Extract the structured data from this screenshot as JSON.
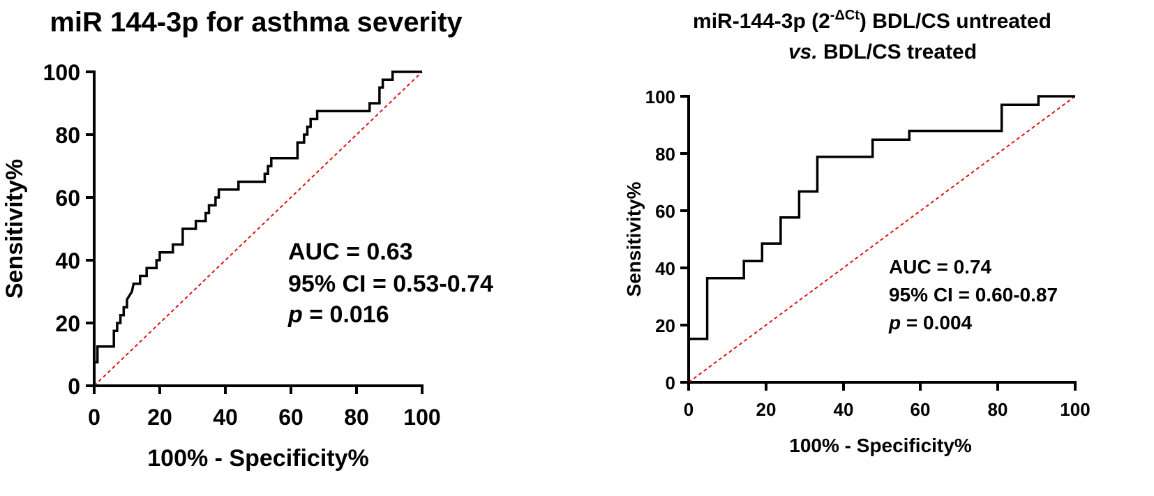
{
  "chart_data": [
    {
      "type": "line",
      "title": "miR 144-3p for asthma severity",
      "xlabel": "100% - Specificity%",
      "ylabel": "Sensitivity%",
      "xlim": [
        0,
        100
      ],
      "ylim": [
        0,
        100
      ],
      "xticks": [
        "0",
        "20",
        "40",
        "60",
        "80",
        "100"
      ],
      "yticks": [
        "0",
        "20",
        "40",
        "60",
        "80",
        "100"
      ],
      "annotations": {
        "auc": "AUC = 0.63",
        "ci": "95% CI = 0.53-0.74",
        "p_label": "p",
        "p_value": " = 0.016"
      },
      "reference_color": "#e01010",
      "series": [
        {
          "name": "ROC",
          "x": [
            0,
            0,
            1,
            1,
            6,
            6,
            7,
            7,
            8,
            8,
            9,
            9,
            10,
            10,
            11.5,
            12,
            14,
            14,
            16,
            16,
            19,
            19,
            20,
            20,
            24,
            24,
            27,
            27,
            31,
            31,
            34,
            34,
            35,
            35,
            37,
            37,
            38,
            38,
            40,
            40,
            42,
            42,
            44,
            44,
            52,
            52,
            53,
            53,
            54,
            54,
            62,
            62,
            64,
            64,
            65,
            65,
            66,
            66,
            68,
            68,
            70,
            70,
            71,
            71,
            72,
            72,
            84,
            84,
            87,
            87,
            88,
            88,
            91,
            91,
            96,
            96,
            100
          ],
          "y": [
            0,
            7.5,
            7.5,
            12.5,
            12.5,
            17.5,
            17.5,
            20,
            20,
            22.5,
            22.5,
            25,
            25,
            27.5,
            30,
            32.5,
            32.5,
            35,
            35,
            37.5,
            37.5,
            40,
            40,
            42.5,
            42.5,
            45,
            45,
            50,
            50,
            52.5,
            52.5,
            55,
            55,
            57.5,
            57.5,
            60,
            60,
            62.5,
            62.5,
            62.5,
            62.5,
            62.5,
            62.5,
            65,
            65,
            67.5,
            67.5,
            70,
            70,
            72.5,
            72.5,
            77.5,
            77.5,
            80,
            80,
            82.5,
            82.5,
            85,
            85,
            87.5,
            87.5,
            87.5,
            87.5,
            87.5,
            87.5,
            87.5,
            87.5,
            90,
            90,
            95,
            95,
            97.5,
            97.5,
            100,
            100,
            100,
            100
          ]
        },
        {
          "name": "Reference",
          "x": [
            0,
            100
          ],
          "y": [
            0,
            100
          ]
        }
      ]
    },
    {
      "type": "line",
      "title_prefix": "miR-144-3p (2",
      "title_sup": "-ΔCt",
      "title_suffix": ") BDL/CS untreated",
      "title_line2_italic": "vs.",
      "title_line2_rest": " BDL/CS treated",
      "xlabel": "100% - Specificity%",
      "ylabel": "Sensitivity%",
      "xlim": [
        0,
        100
      ],
      "ylim": [
        0,
        100
      ],
      "xticks": [
        "0",
        "20",
        "40",
        "60",
        "80",
        "100"
      ],
      "yticks": [
        "0",
        "20",
        "40",
        "60",
        "80",
        "100"
      ],
      "annotations": {
        "auc": "AUC = 0.74",
        "ci": "95% CI = 0.60-0.87",
        "p_label": "p",
        "p_value": " = 0.004"
      },
      "reference_color": "#e01010",
      "series": [
        {
          "name": "ROC",
          "x": [
            0,
            0,
            4.8,
            4.8,
            14.3,
            14.3,
            19,
            19,
            23.8,
            23.8,
            28.6,
            28.6,
            33.3,
            33.3,
            47.6,
            47.6,
            57.1,
            57.1,
            81,
            81,
            90.5,
            90.5,
            100
          ],
          "y": [
            0,
            15.2,
            15.2,
            36.4,
            36.4,
            42.4,
            42.4,
            48.5,
            48.5,
            57.6,
            57.6,
            66.7,
            66.7,
            78.8,
            78.8,
            84.8,
            84.8,
            87.9,
            87.9,
            97,
            97,
            100,
            100
          ]
        },
        {
          "name": "Reference",
          "x": [
            0,
            100
          ],
          "y": [
            0,
            100
          ]
        }
      ]
    }
  ]
}
